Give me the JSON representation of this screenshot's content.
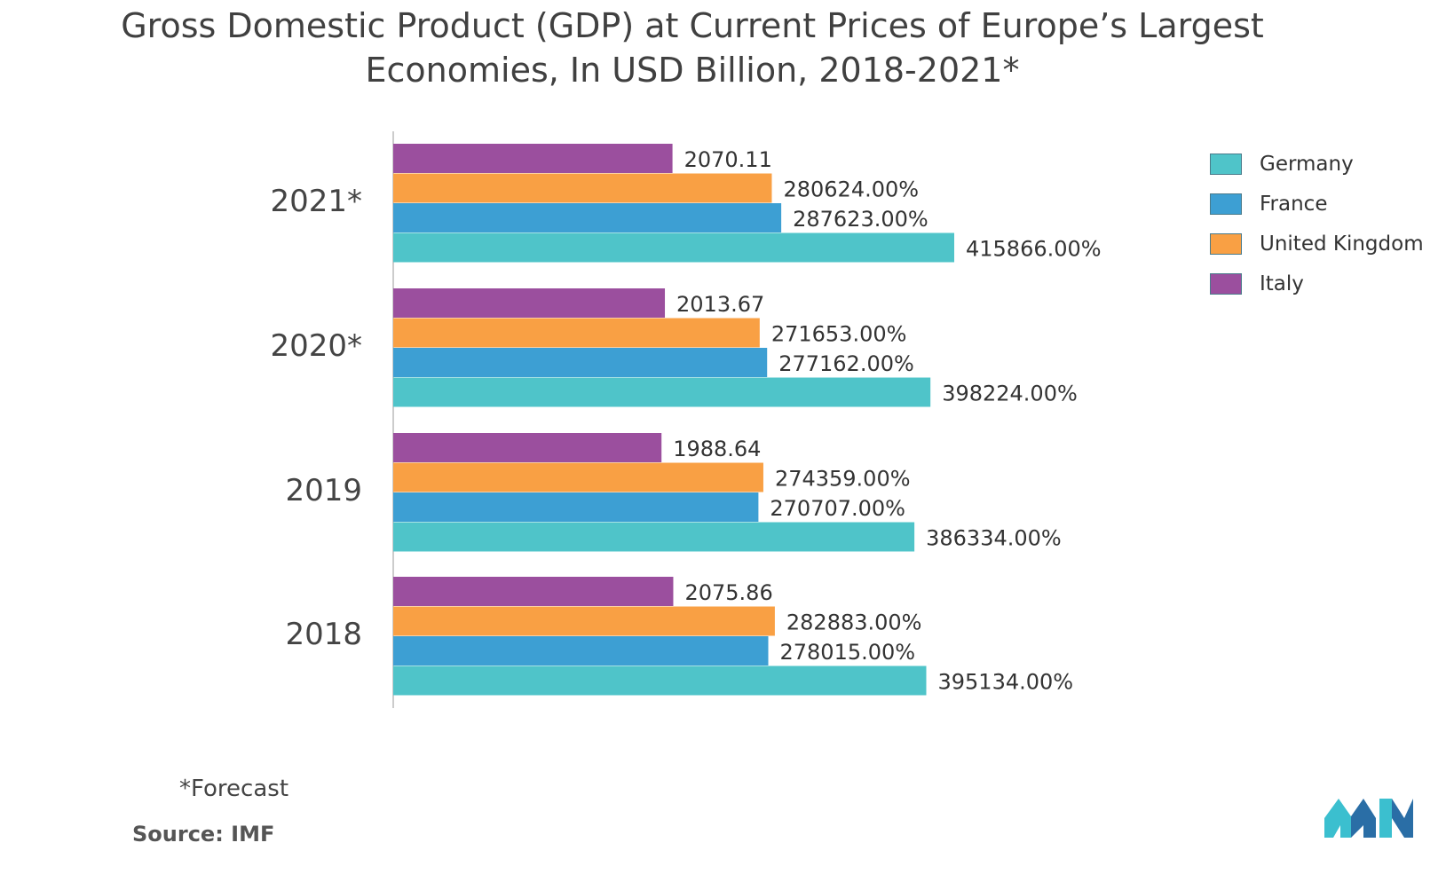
{
  "title_line1": "Gross Domestic Product (GDP) at Current Prices of Europe’s Largest",
  "title_line2": "Economies, In USD Billion, 2018-2021*",
  "footnote": "*Forecast",
  "source": "Source: IMF",
  "logo": {
    "name": "Mordor Intelligence logo",
    "colors": [
      "#3bbfcf",
      "#2a6ea6"
    ]
  },
  "chart_data": {
    "type": "bar",
    "orientation": "horizontal",
    "title": "Gross Domestic Product (GDP) at Current Prices of Europe’s Largest Economies, In USD Billion, 2018-2021*",
    "categories": [
      "2018",
      "2019",
      "2020*",
      "2021*"
    ],
    "series": [
      {
        "name": "Germany",
        "color": "#4fc4c9",
        "values": [
          3951.34,
          3863.34,
          3982.24,
          4158.66
        ],
        "labels": [
          "395134.00%",
          "386334.00%",
          "398224.00%",
          "415866.00%"
        ]
      },
      {
        "name": "France",
        "color": "#3d9fd3",
        "values": [
          2780.15,
          2707.07,
          2771.62,
          2876.23
        ],
        "labels": [
          "278015.00%",
          "270707.00%",
          "277162.00%",
          "287623.00%"
        ]
      },
      {
        "name": "United Kingdom",
        "color": "#f9a044",
        "values": [
          2828.83,
          2743.59,
          2716.53,
          2806.24
        ],
        "labels": [
          "282883.00%",
          "274359.00%",
          "271653.00%",
          "280624.00%"
        ]
      },
      {
        "name": "Italy",
        "color": "#9b4f9e",
        "values": [
          2075.86,
          1988.64,
          2013.67,
          2070.11
        ],
        "labels": [
          "2075.86",
          "1988.64",
          "2013.67",
          "2070.11"
        ]
      }
    ],
    "xlim": [
      0,
      4158.66
    ],
    "xlabel": "",
    "ylabel": "",
    "grid": false,
    "legend": "right"
  }
}
